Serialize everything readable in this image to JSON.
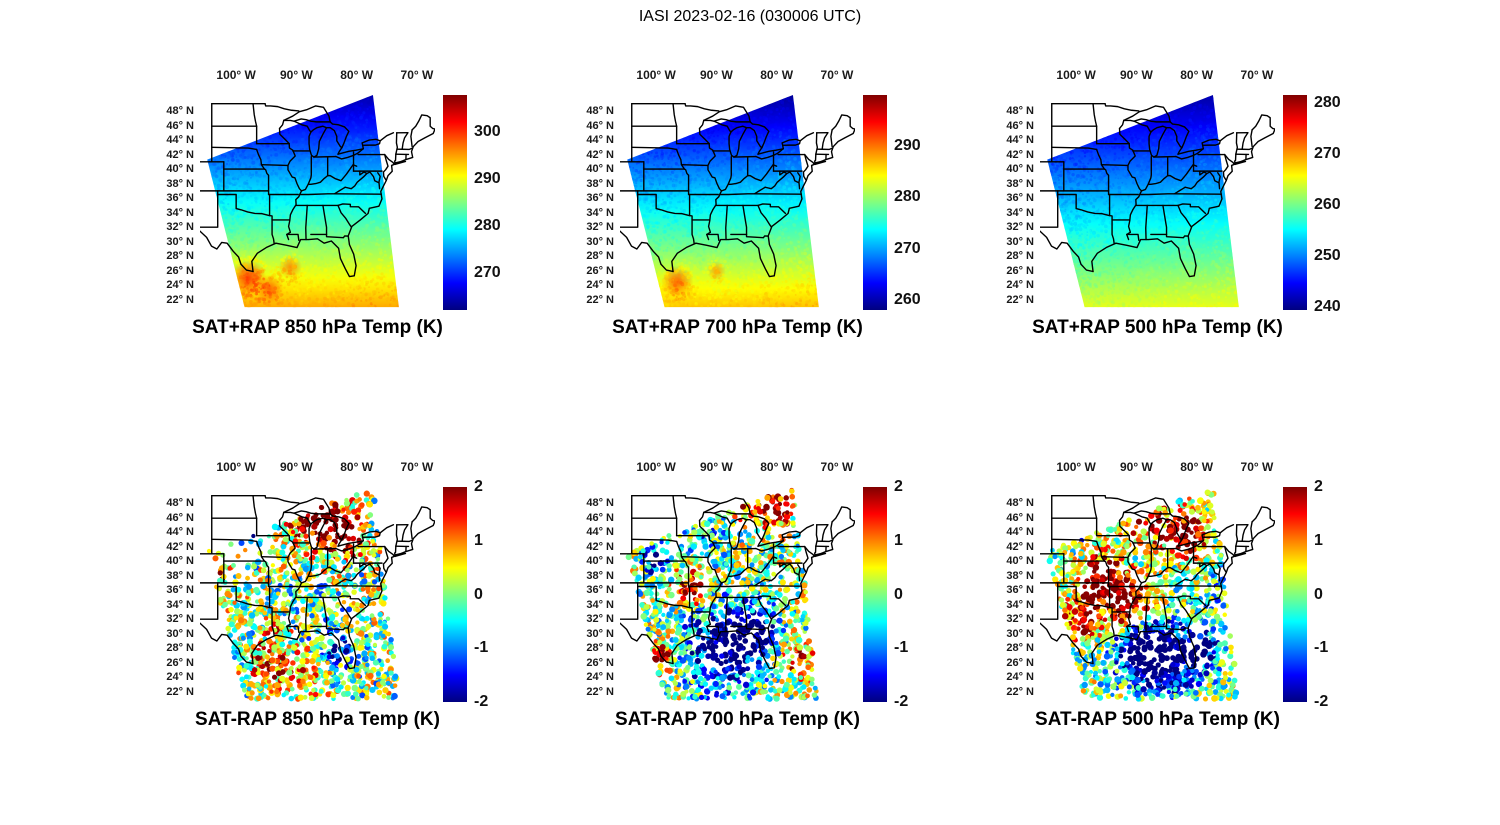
{
  "title": "IASI 2023-02-16 (030006 UTC)",
  "x_tick_labels": [
    "100° W",
    "90° W",
    "80° W",
    "70° W"
  ],
  "x_tick_lons": [
    -100,
    -90,
    -80,
    -70
  ],
  "y_tick_labels": [
    "48° N",
    "46° N",
    "44° N",
    "42° N",
    "40° N",
    "38° N",
    "36° N",
    "34° N",
    "32° N",
    "30° N",
    "28° N",
    "26° N",
    "24° N",
    "22° N"
  ],
  "y_tick_lats": [
    48,
    46,
    44,
    42,
    40,
    38,
    36,
    34,
    32,
    30,
    28,
    26,
    24,
    22
  ],
  "map_extent": {
    "lon_min": -106,
    "lon_max": -67,
    "lat_min": 20.6,
    "lat_max": 50.2
  },
  "swath_corners_lonlat": [
    [
      -104.8,
      41.3
    ],
    [
      -77.3,
      50.2
    ],
    [
      -73.0,
      21.0
    ],
    [
      -98.6,
      21.0
    ]
  ],
  "chart_data": [
    {
      "id": "sat_plus_rap_850",
      "type": "heatmap",
      "title": "SAT+RAP 850 hPa Temp (K)",
      "source": "SAT+RAP",
      "variable": "Temperature",
      "level_hPa": 850,
      "units": "K",
      "colorbar": {
        "colormap": "jet",
        "ticks": [
          270,
          280,
          290,
          300
        ],
        "min": 262,
        "max": 308
      },
      "field": {
        "temp_at_north_edge_K": 264,
        "temp_at_south_edge_K": 295,
        "warm_anomalies": [
          {
            "lon": -98,
            "lat": 25,
            "radius_deg": 2.8,
            "temp_K": 300
          },
          {
            "lon": -94.5,
            "lat": 23.5,
            "radius_deg": 2.2,
            "temp_K": 298
          },
          {
            "lon": -91,
            "lat": 26.5,
            "radius_deg": 1.8,
            "temp_K": 296
          }
        ]
      }
    },
    {
      "id": "sat_plus_rap_700",
      "type": "heatmap",
      "title": "SAT+RAP 700 hPa Temp (K)",
      "source": "SAT+RAP",
      "variable": "Temperature",
      "level_hPa": 700,
      "units": "K",
      "colorbar": {
        "colormap": "jet",
        "ticks": [
          260,
          270,
          280,
          290
        ],
        "min": 258,
        "max": 300
      },
      "field": {
        "temp_at_north_edge_K": 259,
        "temp_at_south_edge_K": 287,
        "warm_anomalies": [
          {
            "lon": -96.5,
            "lat": 24.5,
            "radius_deg": 2.5,
            "temp_K": 291
          },
          {
            "lon": -90,
            "lat": 26,
            "radius_deg": 1.5,
            "temp_K": 288
          }
        ]
      }
    },
    {
      "id": "sat_plus_rap_500",
      "type": "heatmap",
      "title": "SAT+RAP 500 hPa Temp (K)",
      "source": "SAT+RAP",
      "variable": "Temperature",
      "level_hPa": 500,
      "units": "K",
      "colorbar": {
        "colormap": "jet",
        "ticks": [
          240,
          250,
          260,
          270,
          280
        ],
        "min": 239.5,
        "max": 281.5
      },
      "field": {
        "temp_at_north_edge_K": 241,
        "temp_at_south_edge_K": 265,
        "warm_anomalies": []
      }
    },
    {
      "id": "sat_minus_rap_850",
      "type": "scatter",
      "title": "SAT-RAP 850 hPa Temp (K)",
      "source": "SAT-RAP",
      "variable": "Temperature difference",
      "level_hPa": 850,
      "units": "K",
      "colorbar": {
        "colormap": "jet",
        "ticks": [
          -2,
          -1,
          0,
          1,
          2
        ],
        "min": -2,
        "max": 2
      },
      "noise_amplitude_K": 1.25,
      "anomaly_blobs": [
        {
          "lon": -86,
          "lat": 46,
          "radius_deg": 4.5,
          "value": 2.8
        },
        {
          "lon": -81.5,
          "lat": 43.5,
          "radius_deg": 2.5,
          "value": 2.2
        },
        {
          "lon": -103,
          "lat": 39,
          "radius_deg": 2.2,
          "value": 1.6
        },
        {
          "lon": -97,
          "lat": 44.5,
          "radius_deg": 2.5,
          "value": -1.5
        },
        {
          "lon": -83,
          "lat": 28,
          "radius_deg": 2.2,
          "value": -2
        },
        {
          "lon": -94.5,
          "lat": 25.5,
          "radius_deg": 3,
          "value": 1.3
        },
        {
          "lon": -89,
          "lat": 24,
          "radius_deg": 3,
          "value": 1
        },
        {
          "lon": -88,
          "lat": 33,
          "radius_deg": 5,
          "value": -0.3
        },
        {
          "lon": -93,
          "lat": 30,
          "radius_deg": 2.5,
          "value": 0.8
        }
      ],
      "sparse_regions": [
        {
          "lon_max": -96,
          "lat_min": 35.5,
          "keep_fraction": 0.5
        },
        {
          "lon_max": -93.5,
          "lat_min": 39.5,
          "keep_fraction": 0.35
        }
      ]
    },
    {
      "id": "sat_minus_rap_700",
      "type": "scatter",
      "title": "SAT-RAP 700 hPa Temp (K)",
      "source": "SAT-RAP",
      "variable": "Temperature difference",
      "level_hPa": 700,
      "units": "K",
      "colorbar": {
        "colormap": "jet",
        "ticks": [
          -2,
          -1,
          0,
          1,
          2
        ],
        "min": -2,
        "max": 2
      },
      "noise_amplitude_K": 1.15,
      "anomaly_blobs": [
        {
          "lon": -80.5,
          "lat": 47.5,
          "radius_deg": 3,
          "value": 2.4
        },
        {
          "lon": -86,
          "lat": 48,
          "radius_deg": 2,
          "value": 1.5
        },
        {
          "lon": -100.2,
          "lat": 40.2,
          "radius_deg": 1.8,
          "value": -2.3
        },
        {
          "lon": -94.5,
          "lat": 36.2,
          "radius_deg": 2.4,
          "value": 2.1
        },
        {
          "lon": -89,
          "lat": 28,
          "radius_deg": 5.5,
          "value": -2.5
        },
        {
          "lon": -83.5,
          "lat": 30.5,
          "radius_deg": 3.5,
          "value": -2
        },
        {
          "lon": -99.3,
          "lat": 26.5,
          "radius_deg": 1.8,
          "value": 2.3
        },
        {
          "lon": -76.5,
          "lat": 26.5,
          "radius_deg": 2.5,
          "value": 1.6
        },
        {
          "lon": -92,
          "lat": 43,
          "radius_deg": 3,
          "value": -0.8
        }
      ],
      "sparse_regions": [
        {
          "lon_max": -95,
          "lat_min": 41,
          "keep_fraction": 0.55
        }
      ]
    },
    {
      "id": "sat_minus_rap_500",
      "type": "scatter",
      "title": "SAT-RAP 500 hPa Temp (K)",
      "source": "SAT-RAP",
      "variable": "Temperature difference",
      "level_hPa": 500,
      "units": "K",
      "colorbar": {
        "colormap": "jet",
        "ticks": [
          -2,
          -1,
          0,
          1,
          2
        ],
        "min": -2,
        "max": 2
      },
      "noise_amplitude_K": 1.1,
      "anomaly_blobs": [
        {
          "lon": -95.5,
          "lat": 37.5,
          "radius_deg": 3.5,
          "value": 2.4
        },
        {
          "lon": -91,
          "lat": 33.5,
          "radius_deg": 4,
          "value": 2.5
        },
        {
          "lon": -99,
          "lat": 32,
          "radius_deg": 3,
          "value": 2
        },
        {
          "lon": -81,
          "lat": 43.5,
          "radius_deg": 3,
          "value": 2.3
        },
        {
          "lon": -87,
          "lat": 45.5,
          "radius_deg": 3.5,
          "value": 1.6
        },
        {
          "lon": -92,
          "lat": 47,
          "radius_deg": 3,
          "value": 1.2
        },
        {
          "lon": -99.5,
          "lat": 45,
          "radius_deg": 2.5,
          "value": -1.3
        },
        {
          "lon": -86,
          "lat": 26.5,
          "radius_deg": 5,
          "value": -2.7
        },
        {
          "lon": -79.5,
          "lat": 27.5,
          "radius_deg": 3,
          "value": -2.3
        },
        {
          "lon": -90,
          "lat": 28.5,
          "radius_deg": 4,
          "value": -2.3
        },
        {
          "lon": -76,
          "lat": 36,
          "radius_deg": 3,
          "value": -0.5
        }
      ],
      "sparse_regions": []
    }
  ]
}
